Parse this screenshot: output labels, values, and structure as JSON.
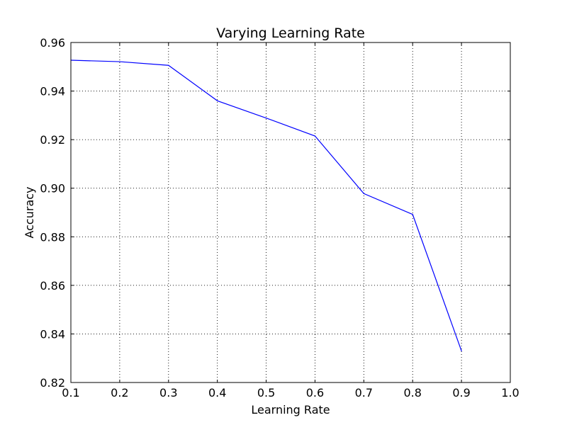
{
  "chart_data": {
    "type": "line",
    "title": "Varying Learning Rate",
    "xlabel": "Learning Rate",
    "ylabel": "Accuracy",
    "xlim": [
      0.1,
      1.0
    ],
    "ylim": [
      0.82,
      0.96
    ],
    "xticks": [
      "0.1",
      "0.2",
      "0.3",
      "0.4",
      "0.5",
      "0.6",
      "0.7",
      "0.8",
      "0.9",
      "1.0"
    ],
    "yticks": [
      "0.82",
      "0.84",
      "0.86",
      "0.88",
      "0.90",
      "0.92",
      "0.94",
      "0.96"
    ],
    "grid": true,
    "series": [
      {
        "color": "#0000ff",
        "x": [
          0.1,
          0.2,
          0.3,
          0.4,
          0.5,
          0.6,
          0.7,
          0.8,
          0.9
        ],
        "y": [
          0.9527,
          0.9521,
          0.9506,
          0.936,
          0.9289,
          0.9215,
          0.8978,
          0.8892,
          0.833
        ]
      }
    ]
  }
}
